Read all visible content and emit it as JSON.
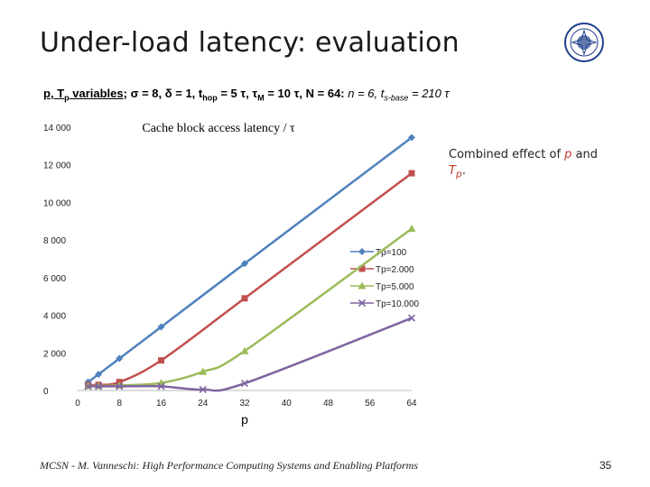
{
  "slide": {
    "title": "Under-load latency: evaluation",
    "params": {
      "p_label": "p",
      "tp_label": "T",
      "tp_sub": "p",
      "variables_word": " variables",
      "rest_bold": "; σ = 8, δ = 1, t",
      "hop_sub": "hop",
      "rest_bold2": " = 5 τ, τ",
      "m_sub": "M",
      "rest_bold3": " = 10 τ, N = 64:",
      "rest_italic": " n = 6, t",
      "sbase_sub": "s-base",
      "rest_italic2": " = 210 τ"
    },
    "note": {
      "text_before": "Combined effect of ",
      "p": "p",
      "and": " and ",
      "tp": "T",
      "tp_sub": "p",
      "end": "."
    },
    "footer": {
      "left": "MCSN  -    M. Vanneschi: High Performance Computing Systems and Enabling Platforms",
      "page": "35"
    }
  },
  "chart_data": {
    "type": "line",
    "title": "Cache block access latency / τ",
    "xlabel": "p",
    "ylabel": "",
    "xlim": [
      0,
      64
    ],
    "ylim": [
      0,
      14000
    ],
    "x_ticks": [
      0,
      8,
      16,
      24,
      32,
      40,
      48,
      56,
      64
    ],
    "y_ticks": [
      0,
      2000,
      4000,
      6000,
      8000,
      10000,
      12000,
      14000
    ],
    "y_tick_labels": [
      "0",
      "2 000",
      "4 000",
      "6 000",
      "8 000",
      "10 000",
      "12 000",
      "14 000"
    ],
    "legend_position": "right",
    "grid": false,
    "series": [
      {
        "name": "Tp=100",
        "color": "#4f81bd",
        "marker": "diamond",
        "x": [
          2,
          4,
          8,
          16,
          32,
          64
        ],
        "y": [
          450,
          860,
          1700,
          3380,
          6750,
          13450
        ]
      },
      {
        "name": "Tp=2.000",
        "color": "#c0504d",
        "marker": "square",
        "x": [
          2,
          4,
          8,
          16,
          32,
          64
        ],
        "y": [
          280,
          300,
          450,
          1600,
          4900,
          11550
        ]
      },
      {
        "name": "Tp=5.000",
        "color": "#9bbb59",
        "marker": "triangle",
        "x": [
          2,
          4,
          8,
          16,
          24,
          32,
          64
        ],
        "y": [
          240,
          240,
          270,
          400,
          1000,
          2100,
          8600
        ]
      },
      {
        "name": "Tp=10.000",
        "color": "#8064a2",
        "marker": "x",
        "x": [
          2,
          4,
          8,
          16,
          24,
          32,
          64
        ],
        "y": [
          220,
          220,
          220,
          220,
          50,
          380,
          3850
        ]
      }
    ]
  }
}
